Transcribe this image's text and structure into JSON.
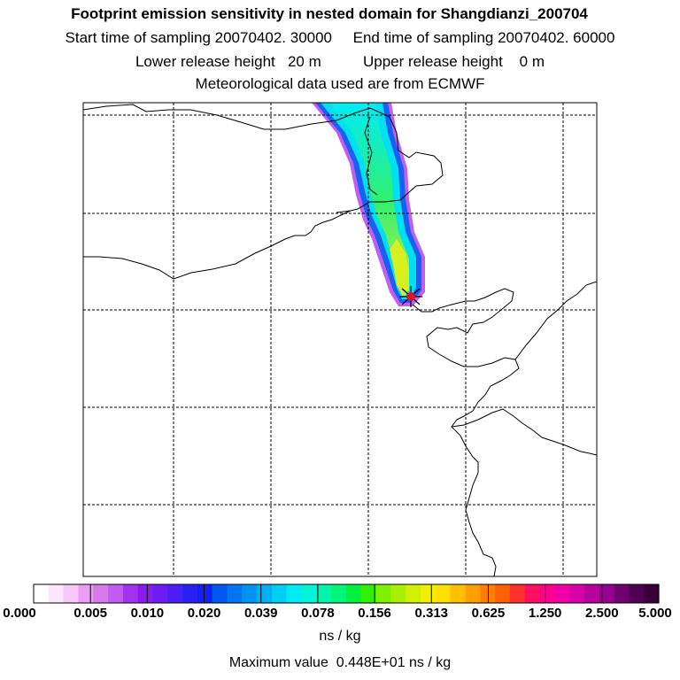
{
  "chart_data": {
    "type": "heatmap",
    "title": "Footprint emission sensitivity in nested domain for Shangdianzi_200704",
    "subtitle_lines": [
      "Start time of sampling 20070402. 30000     End time of sampling 20070402. 60000",
      "Lower release height   20 m          Upper release height    0 m",
      "Meteorological data used are from ECMWF"
    ],
    "station": "Shangdianzi",
    "colorbar": {
      "units": "ns / kg",
      "tick_labels": [
        "0.000",
        "0.005",
        "0.010",
        "0.020",
        "0.039",
        "0.078",
        "0.156",
        "0.313",
        "0.625",
        "1.250",
        "2.500",
        "5.000"
      ],
      "colors": [
        "#ffffff",
        "#fbe6fb",
        "#f5c8f8",
        "#ec9ff4",
        "#d77ae8",
        "#c25cf0",
        "#a433f0",
        "#8a1cf0",
        "#6c1ef2",
        "#4a1ef5",
        "#2a20f5",
        "#0f22f0",
        "#0058f0",
        "#0076f2",
        "#0094f2",
        "#00b0f2",
        "#00cff5",
        "#00ecf5",
        "#00f5d8",
        "#00f5a8",
        "#00f578",
        "#00f040",
        "#30f000",
        "#80f000",
        "#a8f000",
        "#d0f000",
        "#f0f000",
        "#ffe000",
        "#ffc000",
        "#ffa000",
        "#ff8000",
        "#ff6000",
        "#ff3030",
        "#ff1060",
        "#ff0090",
        "#f000a8",
        "#d800a8",
        "#b8009c",
        "#980090",
        "#700070",
        "#500050",
        "#3a0036"
      ]
    },
    "max_value_label": "Maximum value  0.448E+01 ns / kg",
    "max_value": 4.48
  }
}
